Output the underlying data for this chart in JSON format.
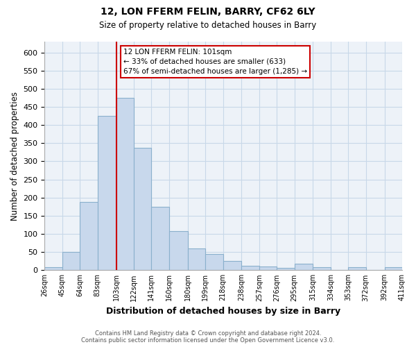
{
  "title": "12, LON FFERM FELIN, BARRY, CF62 6LY",
  "subtitle": "Size of property relative to detached houses in Barry",
  "xlabel": "Distribution of detached houses by size in Barry",
  "ylabel": "Number of detached properties",
  "bar_color": "#c8d8ec",
  "bar_edge_color": "#8ab0cc",
  "bins": [
    26,
    45,
    64,
    83,
    103,
    122,
    141,
    160,
    180,
    199,
    218,
    238,
    257,
    276,
    295,
    315,
    334,
    353,
    372,
    392,
    411
  ],
  "tick_labels": [
    "26sqm",
    "45sqm",
    "64sqm",
    "83sqm",
    "103sqm",
    "122sqm",
    "141sqm",
    "160sqm",
    "180sqm",
    "199sqm",
    "218sqm",
    "238sqm",
    "257sqm",
    "276sqm",
    "295sqm",
    "315sqm",
    "334sqm",
    "353sqm",
    "372sqm",
    "392sqm",
    "411sqm"
  ],
  "bar_heights": [
    8,
    50,
    188,
    425,
    475,
    338,
    175,
    108,
    60,
    44,
    25,
    12,
    10,
    7,
    18,
    8,
    0,
    8,
    0,
    8
  ],
  "ylim": [
    0,
    630
  ],
  "yticks": [
    0,
    50,
    100,
    150,
    200,
    250,
    300,
    350,
    400,
    450,
    500,
    550,
    600
  ],
  "vline_x": 103,
  "vline_color": "#cc0000",
  "annotation_title": "12 LON FFERM FELIN: 101sqm",
  "annotation_line2": "← 33% of detached houses are smaller (633)",
  "annotation_line3": "67% of semi-detached houses are larger (1,285) →",
  "footer_line1": "Contains HM Land Registry data © Crown copyright and database right 2024.",
  "footer_line2": "Contains public sector information licensed under the Open Government Licence v3.0.",
  "grid_color": "#c8d8e8",
  "background_color": "#edf2f8"
}
